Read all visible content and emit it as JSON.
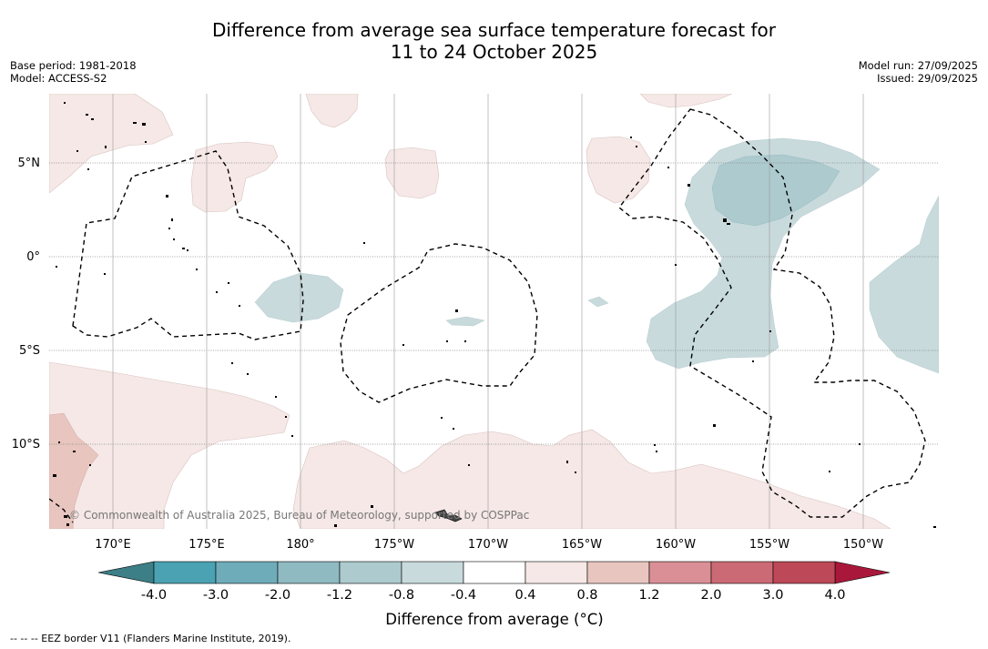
{
  "title": {
    "line1": "Difference from average sea surface temperature forecast for",
    "line2": "11 to 24 October 2025"
  },
  "meta": {
    "base_period": "Base period: 1981-2018",
    "model": "Model: ACCESS-S2",
    "model_run": "Model run: 27/09/2025",
    "issued": "Issued: 29/09/2025"
  },
  "map": {
    "lat_labels": [
      "5°N",
      "0°",
      "5°S",
      "10°S"
    ],
    "lon_labels": [
      "170°E",
      "175°E",
      "180°",
      "175°W",
      "170°W",
      "165°W",
      "160°W",
      "155°W",
      "150°W"
    ],
    "copyright": "© Commonwealth of Australia 2025, Bureau of Meteorology, supported by COSPPac"
  },
  "colorbar": {
    "ticks": [
      "-4.0",
      "-3.0",
      "-2.0",
      "-1.2",
      "-0.8",
      "-0.4",
      "0.4",
      "0.8",
      "1.2",
      "2.0",
      "3.0",
      "4.0"
    ],
    "colors": [
      "#4aa2b2",
      "#6eacb9",
      "#8fbac2",
      "#adcace",
      "#c8dadc",
      "#ffffff",
      "#f5e8e6",
      "#e8c5bf",
      "#d98f95",
      "#cb6a75",
      "#bd4858"
    ],
    "under_color": "#3c7f87",
    "over_color": "#a9183a",
    "label": "Difference from average (°C)"
  },
  "footnote": "--  --  -- EEZ border V11 (Flanders Marine Institute, 2019)."
}
